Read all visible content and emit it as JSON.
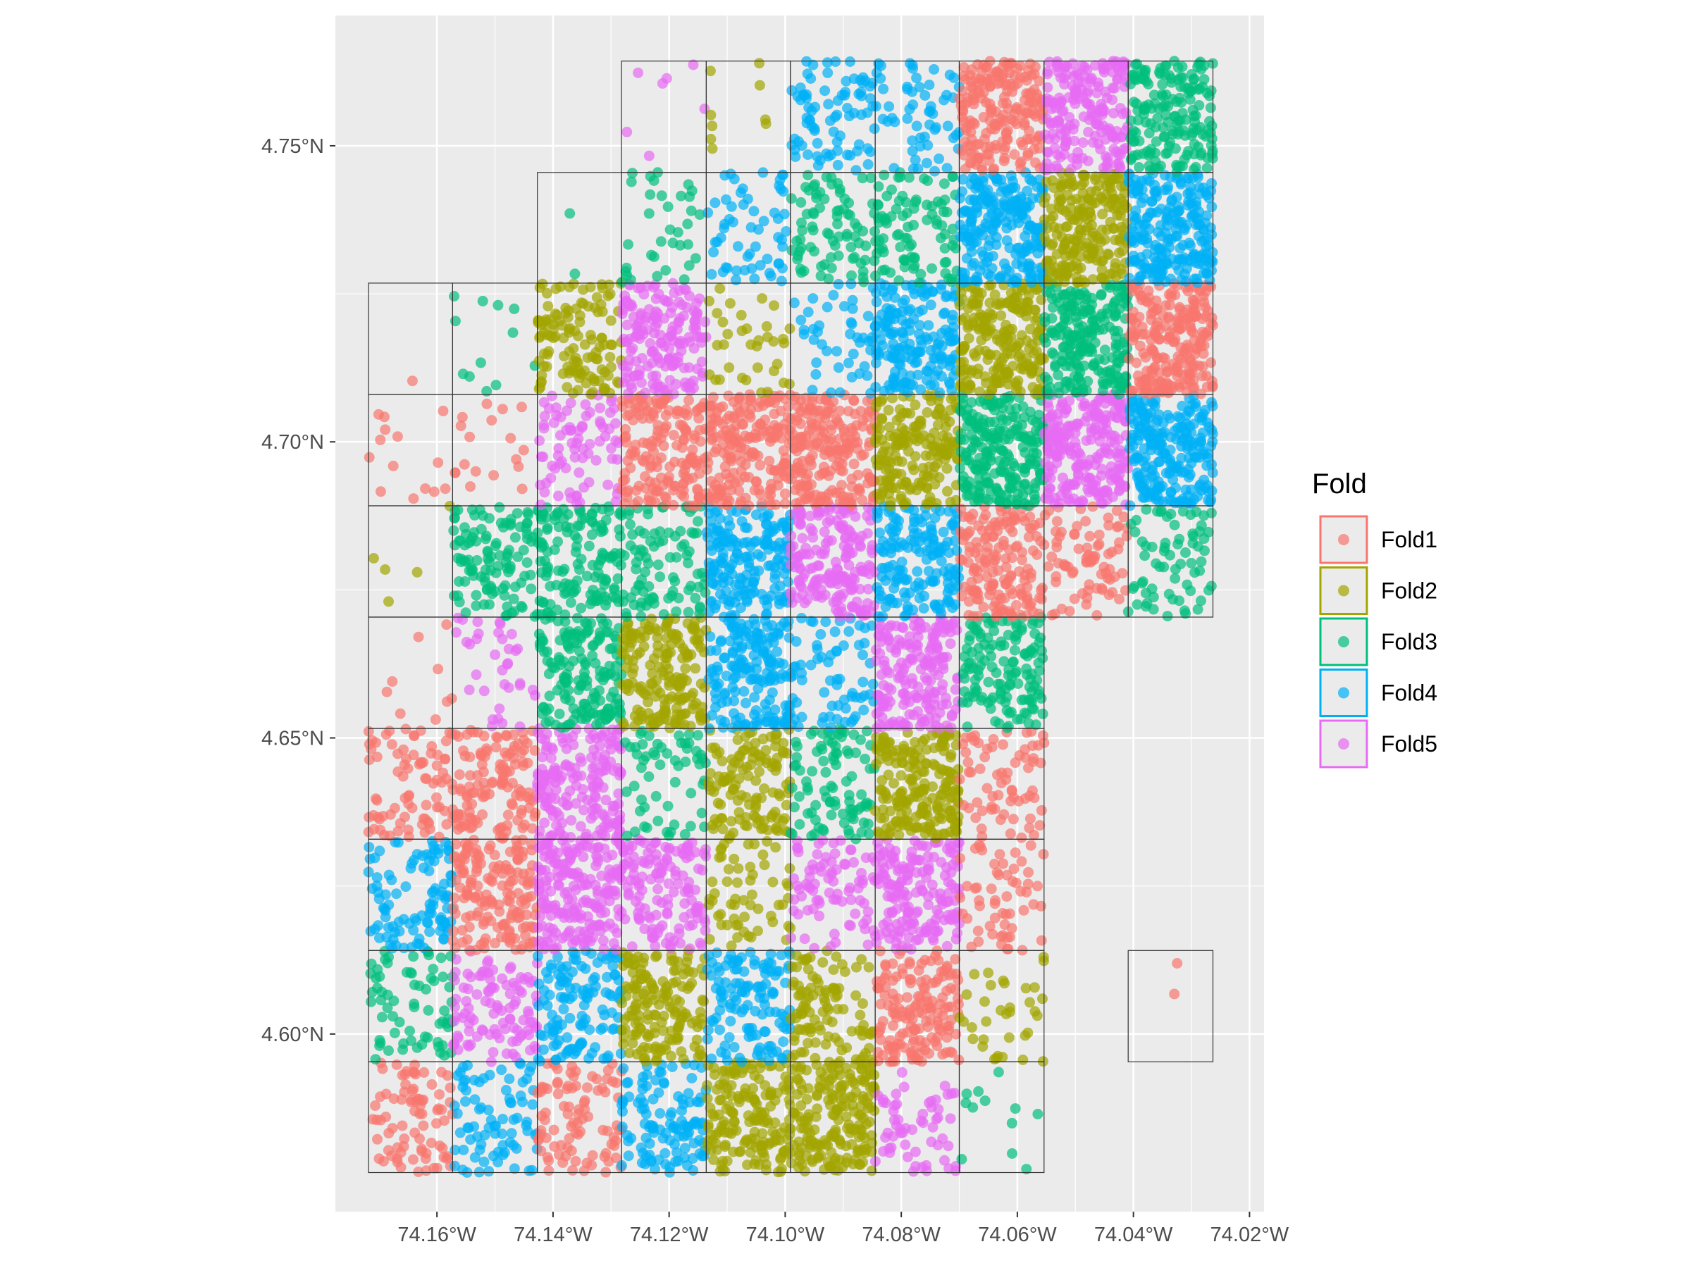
{
  "chart_data": {
    "type": "scatter",
    "title": "",
    "xlabel": "",
    "ylabel": "",
    "xlim": [
      -74.1775,
      -74.0175
    ],
    "ylim": [
      4.57,
      4.772
    ],
    "x_ticks": [
      -74.16,
      -74.14,
      -74.12,
      -74.1,
      -74.08,
      -74.06,
      -74.04,
      -74.02
    ],
    "x_tick_labels": [
      "74.16°W",
      "74.14°W",
      "74.12°W",
      "74.10°W",
      "74.08°W",
      "74.06°W",
      "74.04°W",
      "74.02°W"
    ],
    "y_ticks": [
      4.6,
      4.65,
      4.7,
      4.75
    ],
    "y_tick_labels": [
      "4.60°N",
      "4.65°N",
      "4.70°N",
      "4.75°N"
    ],
    "grid": true,
    "panel_background": "#ebebeb",
    "legend": {
      "title": "Fold",
      "position": "right",
      "entries": [
        {
          "name": "Fold1",
          "color": "#F8766D"
        },
        {
          "name": "Fold2",
          "color": "#A3A500"
        },
        {
          "name": "Fold3",
          "color": "#00BF7D"
        },
        {
          "name": "Fold4",
          "color": "#00B0F6"
        },
        {
          "name": "Fold5",
          "color": "#E76BF3"
        }
      ]
    },
    "grid_cells": {
      "x_edges": [
        -74.1718,
        -74.1573,
        -74.1427,
        -74.1282,
        -74.1136,
        -74.0991,
        -74.0845,
        -74.07,
        -74.0554,
        -74.0409,
        -74.0263
      ],
      "y_edges": [
        4.5766,
        4.5953,
        4.6141,
        4.6329,
        4.6516,
        4.6704,
        4.6892,
        4.708,
        4.7268,
        4.7455,
        4.7643
      ],
      "cells": [
        {
          "col": 0,
          "row": 0,
          "fold": "Fold1",
          "density": 0.35
        },
        {
          "col": 1,
          "row": 0,
          "fold": "Fold4",
          "density": 0.35
        },
        {
          "col": 2,
          "row": 0,
          "fold": "Fold1",
          "density": 0.4
        },
        {
          "col": 3,
          "row": 0,
          "fold": "Fold4",
          "density": 0.5
        },
        {
          "col": 4,
          "row": 0,
          "fold": "Fold2",
          "density": 0.75
        },
        {
          "col": 5,
          "row": 0,
          "fold": "Fold2",
          "density": 0.85
        },
        {
          "col": 6,
          "row": 0,
          "fold": "Fold5",
          "density": 0.25
        },
        {
          "col": 7,
          "row": 0,
          "fold": "Fold3",
          "density": 0.05
        },
        {
          "col": 0,
          "row": 1,
          "fold": "Fold3",
          "density": 0.3
        },
        {
          "col": 1,
          "row": 1,
          "fold": "Fold5",
          "density": 0.45
        },
        {
          "col": 2,
          "row": 1,
          "fold": "Fold4",
          "density": 0.55
        },
        {
          "col": 3,
          "row": 1,
          "fold": "Fold2",
          "density": 0.7
        },
        {
          "col": 4,
          "row": 1,
          "fold": "Fold4",
          "density": 0.55
        },
        {
          "col": 5,
          "row": 1,
          "fold": "Fold2",
          "density": 0.45
        },
        {
          "col": 6,
          "row": 1,
          "fold": "Fold1",
          "density": 0.7
        },
        {
          "col": 7,
          "row": 1,
          "fold": "Fold2",
          "density": 0.15
        },
        {
          "col": 9,
          "row": 1,
          "fold": "Fold1",
          "density": 0.01
        },
        {
          "col": 0,
          "row": 2,
          "fold": "Fold4",
          "density": 0.45
        },
        {
          "col": 1,
          "row": 2,
          "fold": "Fold1",
          "density": 0.7
        },
        {
          "col": 2,
          "row": 2,
          "fold": "Fold5",
          "density": 0.85
        },
        {
          "col": 3,
          "row": 2,
          "fold": "Fold5",
          "density": 0.6
        },
        {
          "col": 4,
          "row": 2,
          "fold": "Fold2",
          "density": 0.25
        },
        {
          "col": 5,
          "row": 2,
          "fold": "Fold5",
          "density": 0.35
        },
        {
          "col": 6,
          "row": 2,
          "fold": "Fold5",
          "density": 0.75
        },
        {
          "col": 7,
          "row": 2,
          "fold": "Fold1",
          "density": 0.25
        },
        {
          "col": 0,
          "row": 3,
          "fold": "Fold1",
          "density": 0.35
        },
        {
          "col": 1,
          "row": 3,
          "fold": "Fold1",
          "density": 0.55
        },
        {
          "col": 2,
          "row": 3,
          "fold": "Fold5",
          "density": 0.75
        },
        {
          "col": 3,
          "row": 3,
          "fold": "Fold3",
          "density": 0.25
        },
        {
          "col": 4,
          "row": 3,
          "fold": "Fold2",
          "density": 0.55
        },
        {
          "col": 5,
          "row": 3,
          "fold": "Fold3",
          "density": 0.4
        },
        {
          "col": 6,
          "row": 3,
          "fold": "Fold2",
          "density": 0.9
        },
        {
          "col": 7,
          "row": 3,
          "fold": "Fold1",
          "density": 0.3
        },
        {
          "col": 0,
          "row": 4,
          "fold": "Fold1",
          "density": 0.04
        },
        {
          "col": 1,
          "row": 4,
          "fold": "Fold5",
          "density": 0.15
        },
        {
          "col": 2,
          "row": 4,
          "fold": "Fold3",
          "density": 0.7
        },
        {
          "col": 3,
          "row": 4,
          "fold": "Fold2",
          "density": 0.8
        },
        {
          "col": 4,
          "row": 4,
          "fold": "Fold4",
          "density": 0.75
        },
        {
          "col": 5,
          "row": 4,
          "fold": "Fold4",
          "density": 0.3
        },
        {
          "col": 6,
          "row": 4,
          "fold": "Fold5",
          "density": 0.8
        },
        {
          "col": 7,
          "row": 4,
          "fold": "Fold3",
          "density": 0.6
        },
        {
          "col": 0,
          "row": 5,
          "fold": "Fold2",
          "density": 0.02
        },
        {
          "col": 1,
          "row": 5,
          "fold": "Fold3",
          "density": 0.5
        },
        {
          "col": 2,
          "row": 5,
          "fold": "Fold3",
          "density": 0.6
        },
        {
          "col": 3,
          "row": 5,
          "fold": "Fold3",
          "density": 0.4
        },
        {
          "col": 4,
          "row": 5,
          "fold": "Fold4",
          "density": 0.8
        },
        {
          "col": 5,
          "row": 5,
          "fold": "Fold5",
          "density": 0.8
        },
        {
          "col": 6,
          "row": 5,
          "fold": "Fold4",
          "density": 0.7
        },
        {
          "col": 7,
          "row": 5,
          "fold": "Fold1",
          "density": 0.7
        },
        {
          "col": 8,
          "row": 5,
          "fold": "Fold1",
          "density": 0.35
        },
        {
          "col": 9,
          "row": 5,
          "fold": "Fold3",
          "density": 0.3
        },
        {
          "col": 0,
          "row": 6,
          "fold": "Fold1",
          "density": 0.06
        },
        {
          "col": 1,
          "row": 6,
          "fold": "Fold1",
          "density": 0.08
        },
        {
          "col": 2,
          "row": 6,
          "fold": "Fold5",
          "density": 0.35
        },
        {
          "col": 3,
          "row": 6,
          "fold": "Fold1",
          "density": 0.75
        },
        {
          "col": 4,
          "row": 6,
          "fold": "Fold1",
          "density": 0.85
        },
        {
          "col": 5,
          "row": 6,
          "fold": "Fold1",
          "density": 0.9
        },
        {
          "col": 6,
          "row": 6,
          "fold": "Fold2",
          "density": 0.8
        },
        {
          "col": 7,
          "row": 6,
          "fold": "Fold3",
          "density": 1.0
        },
        {
          "col": 8,
          "row": 6,
          "fold": "Fold5",
          "density": 1.0
        },
        {
          "col": 9,
          "row": 6,
          "fold": "Fold4",
          "density": 1.0
        },
        {
          "col": 0,
          "row": 7,
          "fold": "Fold1",
          "density": 0.0
        },
        {
          "col": 1,
          "row": 7,
          "fold": "Fold3",
          "density": 0.05
        },
        {
          "col": 2,
          "row": 7,
          "fold": "Fold2",
          "density": 0.55
        },
        {
          "col": 3,
          "row": 7,
          "fold": "Fold5",
          "density": 0.75
        },
        {
          "col": 4,
          "row": 7,
          "fold": "Fold2",
          "density": 0.15
        },
        {
          "col": 5,
          "row": 7,
          "fold": "Fold4",
          "density": 0.2
        },
        {
          "col": 6,
          "row": 7,
          "fold": "Fold4",
          "density": 0.75
        },
        {
          "col": 7,
          "row": 7,
          "fold": "Fold2",
          "density": 0.95
        },
        {
          "col": 8,
          "row": 7,
          "fold": "Fold3",
          "density": 1.0
        },
        {
          "col": 9,
          "row": 7,
          "fold": "Fold1",
          "density": 1.0
        },
        {
          "col": 2,
          "row": 8,
          "fold": "Fold3",
          "density": 0.01
        },
        {
          "col": 3,
          "row": 8,
          "fold": "Fold3",
          "density": 0.15
        },
        {
          "col": 4,
          "row": 8,
          "fold": "Fold4",
          "density": 0.25
        },
        {
          "col": 5,
          "row": 8,
          "fold": "Fold3",
          "density": 0.35
        },
        {
          "col": 6,
          "row": 8,
          "fold": "Fold3",
          "density": 0.4
        },
        {
          "col": 7,
          "row": 8,
          "fold": "Fold4",
          "density": 1.0
        },
        {
          "col": 8,
          "row": 8,
          "fold": "Fold2",
          "density": 0.95
        },
        {
          "col": 9,
          "row": 8,
          "fold": "Fold4",
          "density": 1.0
        },
        {
          "col": 3,
          "row": 9,
          "fold": "Fold5",
          "density": 0.03
        },
        {
          "col": 4,
          "row": 9,
          "fold": "Fold2",
          "density": 0.04
        },
        {
          "col": 5,
          "row": 9,
          "fold": "Fold4",
          "density": 0.35
        },
        {
          "col": 6,
          "row": 9,
          "fold": "Fold4",
          "density": 0.25
        },
        {
          "col": 7,
          "row": 9,
          "fold": "Fold1",
          "density": 0.85
        },
        {
          "col": 8,
          "row": 9,
          "fold": "Fold5",
          "density": 0.85
        },
        {
          "col": 9,
          "row": 9,
          "fold": "Fold3",
          "density": 0.75
        }
      ]
    }
  }
}
